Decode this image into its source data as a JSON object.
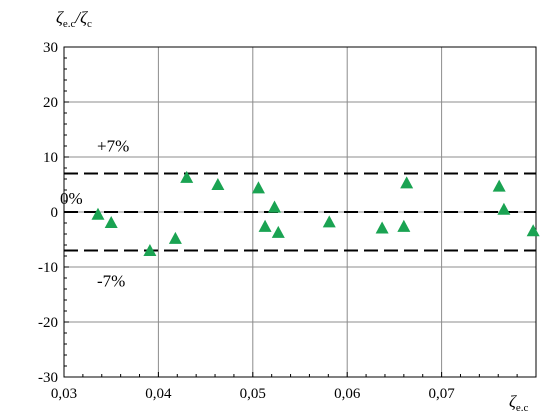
{
  "chart_data": {
    "type": "scatter",
    "title": "",
    "xlabel": {
      "main": "ζ",
      "sub": "e.c"
    },
    "ylabel": {
      "main": "ζ",
      "sub": "e.c",
      "sep": "/",
      "main2": "ζ",
      "sub2": "c"
    },
    "xlim": [
      0.03,
      0.08
    ],
    "ylim": [
      -30,
      30
    ],
    "x_ticks": [
      {
        "value": 0.03,
        "label": "0,03"
      },
      {
        "value": 0.04,
        "label": "0,04"
      },
      {
        "value": 0.05,
        "label": "0,05"
      },
      {
        "value": 0.06,
        "label": "0,06"
      },
      {
        "value": 0.07,
        "label": "0,07"
      }
    ],
    "y_ticks": [
      {
        "value": 30,
        "label": "30"
      },
      {
        "value": 20,
        "label": "20"
      },
      {
        "value": 10,
        "label": "10"
      },
      {
        "value": 0,
        "label": "0"
      },
      {
        "value": -10,
        "label": "-10"
      },
      {
        "value": -20,
        "label": "-20"
      },
      {
        "value": -30,
        "label": "-30"
      }
    ],
    "grid": true,
    "marker": {
      "shape": "triangle",
      "color": "#1aa352"
    },
    "reference_lines": [
      {
        "y": 7,
        "label": "+7%"
      },
      {
        "y": 0,
        "label": "0%"
      },
      {
        "y": -7,
        "label": "-7%"
      }
    ],
    "points": [
      {
        "x": 0.0336,
        "y": -0.4
      },
      {
        "x": 0.035,
        "y": -1.9
      },
      {
        "x": 0.0391,
        "y": -7.0
      },
      {
        "x": 0.0418,
        "y": -4.8
      },
      {
        "x": 0.043,
        "y": 6.3
      },
      {
        "x": 0.0463,
        "y": 5.0
      },
      {
        "x": 0.0506,
        "y": 4.4
      },
      {
        "x": 0.0513,
        "y": -2.6
      },
      {
        "x": 0.0523,
        "y": 0.9
      },
      {
        "x": 0.0527,
        "y": -3.7
      },
      {
        "x": 0.0581,
        "y": -1.8
      },
      {
        "x": 0.0637,
        "y": -2.9
      },
      {
        "x": 0.066,
        "y": -2.6
      },
      {
        "x": 0.0663,
        "y": 5.3
      },
      {
        "x": 0.0761,
        "y": 4.7
      },
      {
        "x": 0.0766,
        "y": 0.5
      },
      {
        "x": 0.0797,
        "y": -3.4
      }
    ]
  }
}
